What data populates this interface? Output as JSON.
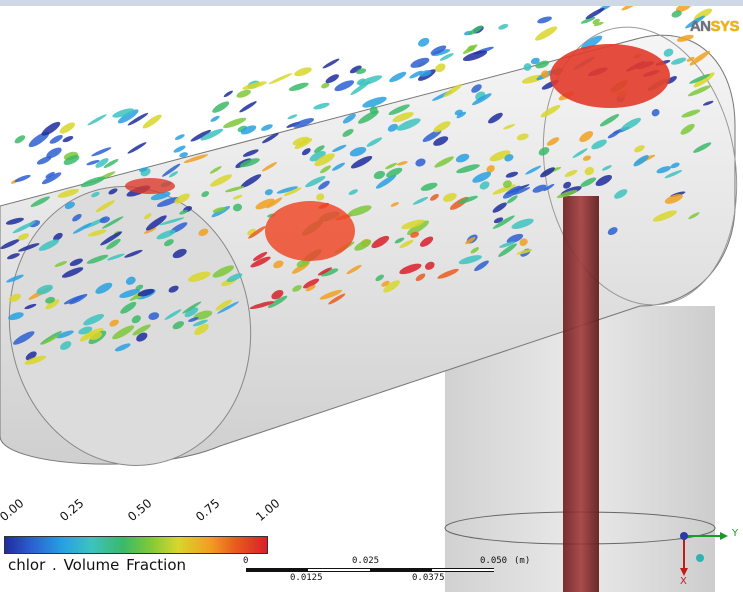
{
  "logo": {
    "part1": "AN",
    "part2": "SYS"
  },
  "legend": {
    "ticks": [
      "0.00",
      "0.25",
      "0.50",
      "0.75",
      "1.00"
    ],
    "title": "chlor . Volume Fraction"
  },
  "scale_bar": {
    "top_labels": [
      "0",
      "0.025",
      "0.050",
      "(m)"
    ],
    "bottom_labels": [
      "0.0125",
      "0.0375"
    ]
  },
  "axes": {
    "y_label": "Y",
    "x_label": "X"
  },
  "colors": {
    "low": "#1f2d9c",
    "mid": "#3cb86a",
    "high": "#d8202a",
    "pipe": "#e9e9e9",
    "jet": "#8a2a2a"
  }
}
